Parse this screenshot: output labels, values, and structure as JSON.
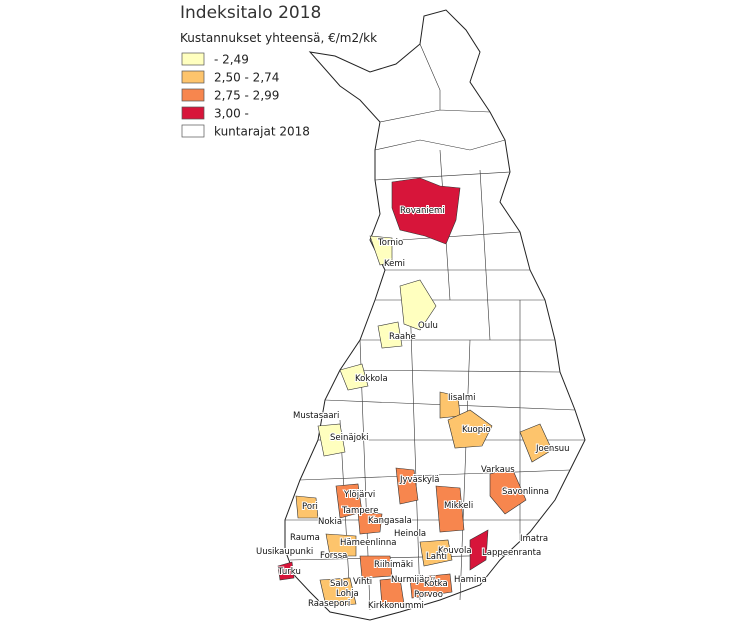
{
  "title": "Indeksitalo 2018",
  "legend": {
    "title": "Kustannukset yhteensä, €/m2/kk",
    "items": [
      {
        "label": "- 2,49",
        "color": "#ffffbf"
      },
      {
        "label": "2,50 - 2,74",
        "color": "#fdc46c"
      },
      {
        "label": "2,75 - 2,99",
        "color": "#f7864e"
      },
      {
        "label": "3,00 -",
        "color": "#d7153a"
      },
      {
        "label": "kuntarajat 2018",
        "color": "#ffffff"
      }
    ]
  },
  "places": [
    "Rovaniemi",
    "Tornio",
    "Kemi",
    "Oulu",
    "Raahe",
    "Kokkola",
    "Iisalmi",
    "Mustasaari",
    "Kuopio",
    "Seinäjoki",
    "Joensuu",
    "Varkaus",
    "Jyväskylä",
    "Savonlinna",
    "Ylöjärvi",
    "Pori",
    "Mikkeli",
    "Tampere",
    "Kangasala",
    "Nokia",
    "Rauma",
    "Heinola",
    "Imatra",
    "Hämeenlinna",
    "Uusikaupunki",
    "Lappeenranta",
    "Forssa",
    "Kouvola",
    "Lahti",
    "Riihimäki",
    "Turku",
    "Salo",
    "Vihti",
    "Nurmijärvi",
    "Kotka",
    "Hamina",
    "Lohja",
    "Porvoo",
    "Raasepori",
    "Kirkkonummi"
  ]
}
